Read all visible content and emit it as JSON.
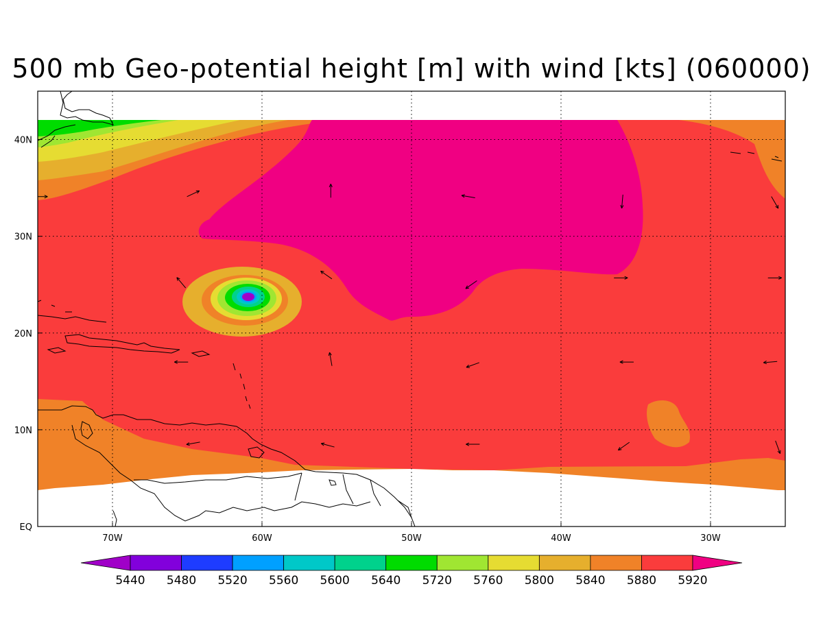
{
  "title": "500 mb Geo-potential height [m] with wind [kts] (060000)",
  "map": {
    "lon_range": [
      -75,
      -25
    ],
    "lat_range": [
      0,
      45
    ],
    "data_lat_range": [
      4,
      42
    ],
    "lon_ticks": [
      {
        "lon": -70,
        "label": "70W"
      },
      {
        "lon": -60,
        "label": "60W"
      },
      {
        "lon": -50,
        "label": "50W"
      },
      {
        "lon": -40,
        "label": "40W"
      },
      {
        "lon": -30,
        "label": "30W"
      }
    ],
    "lat_ticks": [
      {
        "lat": 0,
        "label": "EQ"
      },
      {
        "lat": 10,
        "label": "10N"
      },
      {
        "lat": 20,
        "label": "20N"
      },
      {
        "lat": 30,
        "label": "30N"
      },
      {
        "lat": 40,
        "label": "40N"
      }
    ],
    "grid": "dotted"
  },
  "colorbar": {
    "levels": [
      "5440",
      "5480",
      "5520",
      "5560",
      "5600",
      "5640",
      "5720",
      "5760",
      "5800",
      "5840",
      "5880",
      "5920"
    ],
    "colors": [
      "#a000c8",
      "#8200dc",
      "#1e3cff",
      "#00a0ff",
      "#00c8c8",
      "#00d28c",
      "#00dc00",
      "#a0e632",
      "#e6dc32",
      "#e6af2d",
      "#f08228",
      "#fa3c3c",
      "#f00082"
    ]
  },
  "features": {
    "high_contour": {
      "level": "5920",
      "color": "#f00082"
    },
    "low_center": {
      "lon": -61,
      "lat": 23.7,
      "color": "#a000c8"
    }
  },
  "wind_arrows": [
    {
      "lon": -55.4,
      "lat": 34.7,
      "dir": 90
    },
    {
      "lon": -46.2,
      "lat": 34.1,
      "dir": 170
    },
    {
      "lon": -35.9,
      "lat": 33.6,
      "dir": 265
    },
    {
      "lon": -64.6,
      "lat": 34.4,
      "dir": 25
    },
    {
      "lon": -74.8,
      "lat": 34.1,
      "dir": 0
    },
    {
      "lon": -25.7,
      "lat": 33.5,
      "dir": 300
    },
    {
      "lon": -65.4,
      "lat": 25.2,
      "dir": 130
    },
    {
      "lon": -55.7,
      "lat": 26.0,
      "dir": 145
    },
    {
      "lon": -46.0,
      "lat": 25.0,
      "dir": 215
    },
    {
      "lon": -36.0,
      "lat": 25.7,
      "dir": 0
    },
    {
      "lon": -25.7,
      "lat": 25.7,
      "dir": 0
    },
    {
      "lon": -55.4,
      "lat": 17.3,
      "dir": 100
    },
    {
      "lon": -45.9,
      "lat": 16.7,
      "dir": 200
    },
    {
      "lon": -35.6,
      "lat": 17.0,
      "dir": 180
    },
    {
      "lon": -26.0,
      "lat": 17.0,
      "dir": 185
    },
    {
      "lon": -65.4,
      "lat": 17.0,
      "dir": 180
    },
    {
      "lon": -64.6,
      "lat": 8.6,
      "dir": 190
    },
    {
      "lon": -55.6,
      "lat": 8.4,
      "dir": 165
    },
    {
      "lon": -45.9,
      "lat": 8.5,
      "dir": 180
    },
    {
      "lon": -35.8,
      "lat": 8.3,
      "dir": 215
    },
    {
      "lon": -25.5,
      "lat": 8.2,
      "dir": 290
    }
  ]
}
